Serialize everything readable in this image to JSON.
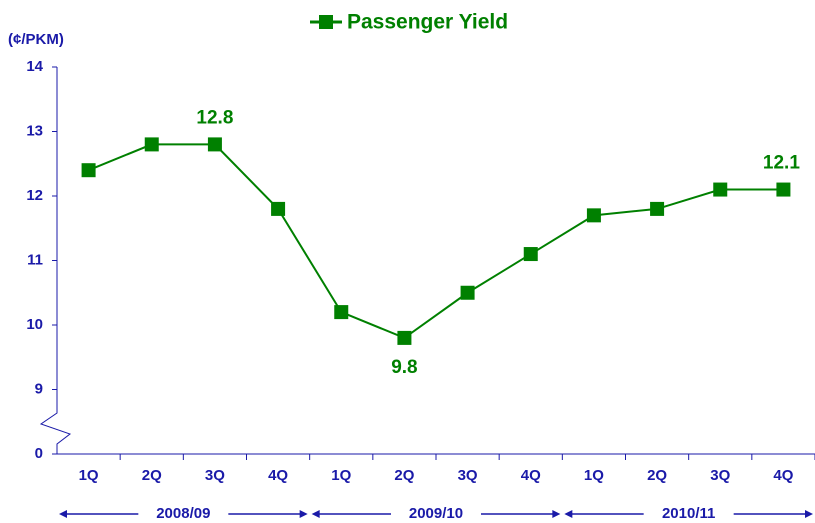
{
  "chart_data": {
    "type": "line",
    "title": "Passenger Yield",
    "y_axis_label": "(¢/PKM)",
    "categories": [
      "1Q",
      "2Q",
      "3Q",
      "4Q",
      "1Q",
      "2Q",
      "3Q",
      "4Q",
      "1Q",
      "2Q",
      "3Q",
      "4Q"
    ],
    "groups": [
      "2008/09",
      "2009/10",
      "2010/11"
    ],
    "series": [
      {
        "name": "Passenger Yield",
        "color": "#008000",
        "values": [
          12.4,
          12.8,
          12.8,
          11.8,
          10.2,
          9.8,
          10.5,
          11.1,
          11.7,
          11.8,
          12.1,
          12.1
        ],
        "value_labels": [
          null,
          null,
          "12.8",
          null,
          null,
          "9.8",
          null,
          null,
          null,
          null,
          null,
          "12.1"
        ]
      }
    ],
    "ylim": [
      0,
      14
    ],
    "yticks": [
      0,
      9,
      10,
      11,
      12,
      13,
      14
    ],
    "axis_break": true,
    "grid": false
  }
}
